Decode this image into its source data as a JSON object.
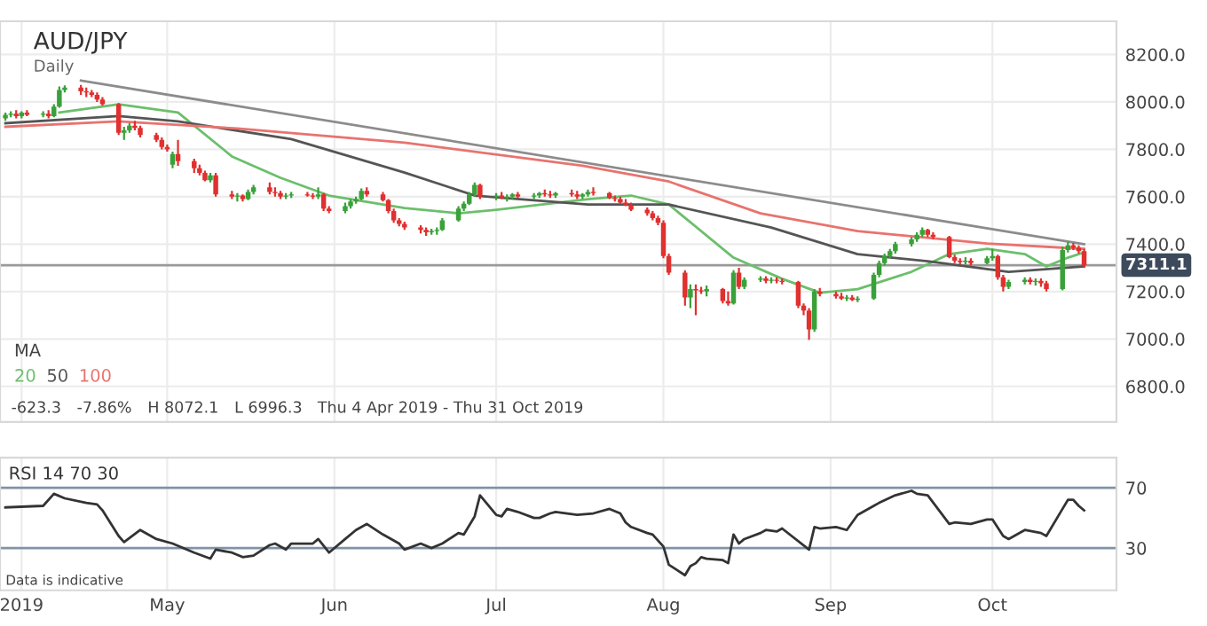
{
  "chart_data": [
    {
      "type": "candlestick",
      "title": "AUD/JPY",
      "subtitle": "Daily",
      "legend_title": "MA",
      "legend": "bottom left",
      "grid": true,
      "tick_labels": "y",
      "annotations": [
        "-623.3",
        "-7.86%",
        "H 8072.1",
        "L 6996.3",
        "Thu 4 Apr 2019 - Thu 31 Oct 2019"
      ],
      "xlim": [
        "2019-03-31",
        "2019-10-24"
      ],
      "xticks": [
        {
          "value": "2019-04-04",
          "label": null
        },
        {
          "value": "2019-05-01",
          "label": null
        },
        {
          "value": "2019-06-01",
          "label": null
        },
        {
          "value": "2019-07-01",
          "label": null
        },
        {
          "value": "2019-08-01",
          "label": null
        },
        {
          "value": "2019-09-01",
          "label": null
        },
        {
          "value": "2019-10-01",
          "label": null
        }
      ],
      "ylim": [
        6650,
        8340
      ],
      "yticks": [
        {
          "value": 6800,
          "label": "6800.0"
        },
        {
          "value": 7000,
          "label": "7000.0"
        },
        {
          "value": 7200,
          "label": "7200.0"
        },
        {
          "value": 7400,
          "label": "7400.0"
        },
        {
          "value": 7600,
          "label": "7600.0"
        },
        {
          "value": 7800,
          "label": "7800.0"
        },
        {
          "value": 8000,
          "label": "8000.0"
        },
        {
          "value": 8200,
          "label": "8200.0"
        }
      ],
      "ref_lines": [
        {
          "axis": "y",
          "value": 7311.1,
          "label": "7311.1",
          "color": "#9a9a9a"
        }
      ],
      "x": [
        "2019-04-01",
        "2019-04-02",
        "2019-04-03",
        "2019-04-04",
        "2019-04-05",
        "2019-04-08",
        "2019-04-09",
        "2019-04-10",
        "2019-04-11",
        "2019-04-12",
        "2019-04-15",
        "2019-04-16",
        "2019-04-17",
        "2019-04-18",
        "2019-04-19",
        "2019-04-22",
        "2019-04-23",
        "2019-04-24",
        "2019-04-25",
        "2019-04-26",
        "2019-04-29",
        "2019-04-30",
        "2019-05-01",
        "2019-05-02",
        "2019-05-03",
        "2019-05-06",
        "2019-05-07",
        "2019-05-08",
        "2019-05-09",
        "2019-05-10",
        "2019-05-13",
        "2019-05-14",
        "2019-05-15",
        "2019-05-16",
        "2019-05-17",
        "2019-05-20",
        "2019-05-21",
        "2019-05-22",
        "2019-05-23",
        "2019-05-24",
        "2019-05-27",
        "2019-05-28",
        "2019-05-29",
        "2019-05-30",
        "2019-05-31",
        "2019-06-03",
        "2019-06-04",
        "2019-06-05",
        "2019-06-06",
        "2019-06-07",
        "2019-06-10",
        "2019-06-11",
        "2019-06-12",
        "2019-06-13",
        "2019-06-14",
        "2019-06-17",
        "2019-06-18",
        "2019-06-19",
        "2019-06-20",
        "2019-06-21",
        "2019-06-24",
        "2019-06-25",
        "2019-06-26",
        "2019-06-27",
        "2019-06-28",
        "2019-07-01",
        "2019-07-02",
        "2019-07-03",
        "2019-07-04",
        "2019-07-05",
        "2019-07-08",
        "2019-07-09",
        "2019-07-10",
        "2019-07-11",
        "2019-07-12",
        "2019-07-15",
        "2019-07-16",
        "2019-07-17",
        "2019-07-18",
        "2019-07-19",
        "2019-07-22",
        "2019-07-23",
        "2019-07-24",
        "2019-07-25",
        "2019-07-26",
        "2019-07-29",
        "2019-07-30",
        "2019-07-31",
        "2019-08-01",
        "2019-08-02",
        "2019-08-05",
        "2019-08-06",
        "2019-08-07",
        "2019-08-08",
        "2019-08-09",
        "2019-08-12",
        "2019-08-13",
        "2019-08-14",
        "2019-08-15",
        "2019-08-16",
        "2019-08-19",
        "2019-08-20",
        "2019-08-21",
        "2019-08-22",
        "2019-08-23",
        "2019-08-26",
        "2019-08-27",
        "2019-08-28",
        "2019-08-29",
        "2019-08-30",
        "2019-09-02",
        "2019-09-03",
        "2019-09-04",
        "2019-09-05",
        "2019-09-06",
        "2019-09-09",
        "2019-09-10",
        "2019-09-11",
        "2019-09-12",
        "2019-09-13",
        "2019-09-16",
        "2019-09-17",
        "2019-09-18",
        "2019-09-19",
        "2019-09-20",
        "2019-09-23",
        "2019-09-24",
        "2019-09-25",
        "2019-09-26",
        "2019-09-27",
        "2019-09-30",
        "2019-10-01",
        "2019-10-02",
        "2019-10-03",
        "2019-10-04",
        "2019-10-07",
        "2019-10-08",
        "2019-10-09",
        "2019-10-10",
        "2019-10-11",
        "2019-10-14",
        "2019-10-15",
        "2019-10-16",
        "2019-10-17",
        "2019-10-18"
      ],
      "ohlc": [
        [
          7930,
          7955,
          7920,
          7945
        ],
        [
          7945,
          7960,
          7935,
          7950
        ],
        [
          7950,
          7965,
          7930,
          7940
        ],
        [
          7940,
          7960,
          7930,
          7955
        ],
        [
          7955,
          7965,
          7940,
          7945
        ],
        [
          7945,
          7960,
          7935,
          7950
        ],
        [
          7950,
          7965,
          7930,
          7940
        ],
        [
          7940,
          7990,
          7935,
          7980
        ],
        [
          7980,
          8065,
          7975,
          8050
        ],
        [
          8050,
          8070,
          8040,
          8060
        ],
        [
          8060,
          8072.1,
          8030,
          8045
        ],
        [
          8045,
          8060,
          8020,
          8040
        ],
        [
          8040,
          8050,
          8020,
          8030
        ],
        [
          8030,
          8040,
          8000,
          8010
        ],
        [
          8010,
          8020,
          7985,
          7990
        ],
        [
          7990,
          7995,
          7860,
          7870
        ],
        [
          7870,
          7895,
          7840,
          7880
        ],
        [
          7880,
          7910,
          7870,
          7900
        ],
        [
          7900,
          7920,
          7880,
          7890
        ],
        [
          7890,
          7900,
          7850,
          7860
        ],
        [
          7860,
          7870,
          7830,
          7840
        ],
        [
          7840,
          7850,
          7800,
          7810
        ],
        [
          7810,
          7820,
          7790,
          7800
        ],
        [
          7735,
          7790,
          7720,
          7780
        ],
        [
          7780,
          7840,
          7730,
          7750
        ],
        [
          7750,
          7760,
          7700,
          7720
        ],
        [
          7720,
          7735,
          7690,
          7700
        ],
        [
          7700,
          7710,
          7665,
          7670
        ],
        [
          7670,
          7700,
          7660,
          7690
        ],
        [
          7690,
          7700,
          7600,
          7610
        ],
        [
          7610,
          7625,
          7590,
          7600
        ],
        [
          7600,
          7615,
          7580,
          7605
        ],
        [
          7605,
          7610,
          7580,
          7590
        ],
        [
          7590,
          7630,
          7585,
          7620
        ],
        [
          7620,
          7650,
          7610,
          7640
        ],
        [
          7640,
          7660,
          7610,
          7620
        ],
        [
          7620,
          7640,
          7600,
          7615
        ],
        [
          7615,
          7625,
          7590,
          7600
        ],
        [
          7600,
          7615,
          7590,
          7605
        ],
        [
          7605,
          7620,
          7595,
          7610
        ],
        [
          7610,
          7620,
          7600,
          7605
        ],
        [
          7605,
          7615,
          7590,
          7600
        ],
        [
          7600,
          7640,
          7590,
          7610
        ],
        [
          7610,
          7615,
          7540,
          7550
        ],
        [
          7550,
          7560,
          7530,
          7540
        ],
        [
          7540,
          7575,
          7530,
          7560
        ],
        [
          7560,
          7590,
          7550,
          7580
        ],
        [
          7580,
          7600,
          7570,
          7590
        ],
        [
          7590,
          7635,
          7585,
          7625
        ],
        [
          7625,
          7640,
          7600,
          7610
        ],
        [
          7610,
          7620,
          7580,
          7585
        ],
        [
          7585,
          7590,
          7530,
          7540
        ],
        [
          7540,
          7550,
          7490,
          7500
        ],
        [
          7500,
          7510,
          7475,
          7485
        ],
        [
          7485,
          7495,
          7460,
          7470
        ],
        [
          7470,
          7480,
          7445,
          7460
        ],
        [
          7460,
          7470,
          7435,
          7450
        ],
        [
          7450,
          7465,
          7440,
          7455
        ],
        [
          7455,
          7470,
          7440,
          7460
        ],
        [
          7460,
          7510,
          7455,
          7500
        ],
        [
          7500,
          7560,
          7495,
          7550
        ],
        [
          7550,
          7580,
          7540,
          7570
        ],
        [
          7570,
          7620,
          7565,
          7610
        ],
        [
          7610,
          7660,
          7600,
          7650
        ],
        [
          7650,
          7655,
          7590,
          7600
        ],
        [
          7600,
          7615,
          7585,
          7605
        ],
        [
          7605,
          7620,
          7590,
          7595
        ],
        [
          7595,
          7610,
          7580,
          7600
        ],
        [
          7600,
          7615,
          7590,
          7610
        ],
        [
          7610,
          7620,
          7595,
          7600
        ],
        [
          7600,
          7615,
          7590,
          7605
        ],
        [
          7605,
          7620,
          7595,
          7615
        ],
        [
          7615,
          7630,
          7600,
          7610
        ],
        [
          7610,
          7625,
          7595,
          7605
        ],
        [
          7605,
          7620,
          7595,
          7615
        ],
        [
          7615,
          7630,
          7600,
          7610
        ],
        [
          7610,
          7625,
          7590,
          7600
        ],
        [
          7600,
          7615,
          7590,
          7610
        ],
        [
          7610,
          7630,
          7600,
          7620
        ],
        [
          7620,
          7640,
          7605,
          7615
        ],
        [
          7615,
          7620,
          7590,
          7595
        ],
        [
          7595,
          7605,
          7580,
          7590
        ],
        [
          7590,
          7600,
          7570,
          7575
        ],
        [
          7575,
          7590,
          7560,
          7565
        ],
        [
          7565,
          7575,
          7540,
          7545
        ],
        [
          7545,
          7555,
          7520,
          7530
        ],
        [
          7530,
          7540,
          7500,
          7510
        ],
        [
          7510,
          7520,
          7480,
          7490
        ],
        [
          7490,
          7500,
          7340,
          7350
        ],
        [
          7350,
          7360,
          7270,
          7280
        ],
        [
          7280,
          7290,
          7140,
          7175
        ],
        [
          7175,
          7230,
          7130,
          7210
        ],
        [
          7210,
          7230,
          7100,
          7205
        ],
        [
          7205,
          7220,
          7190,
          7200
        ],
        [
          7200,
          7225,
          7180,
          7210
        ],
        [
          7210,
          7215,
          7150,
          7160
        ],
        [
          7160,
          7200,
          7140,
          7150
        ],
        [
          7150,
          7290,
          7145,
          7280
        ],
        [
          7280,
          7300,
          7210,
          7220
        ],
        [
          7220,
          7260,
          7210,
          7250
        ],
        [
          7250,
          7265,
          7240,
          7255
        ],
        [
          7255,
          7265,
          7235,
          7245
        ],
        [
          7245,
          7260,
          7235,
          7250
        ],
        [
          7250,
          7260,
          7235,
          7245
        ],
        [
          7245,
          7255,
          7230,
          7240
        ],
        [
          7240,
          7245,
          7130,
          7140
        ],
        [
          7140,
          7150,
          7100,
          7120
        ],
        [
          7120,
          7130,
          6996.3,
          7040
        ],
        [
          7040,
          7210,
          7030,
          7200
        ],
        [
          7200,
          7215,
          7180,
          7190
        ],
        [
          7190,
          7200,
          7170,
          7180
        ],
        [
          7180,
          7195,
          7165,
          7170
        ],
        [
          7170,
          7185,
          7160,
          7175
        ],
        [
          7175,
          7185,
          7160,
          7165
        ],
        [
          7165,
          7180,
          7155,
          7170
        ],
        [
          7170,
          7280,
          7165,
          7270
        ],
        [
          7270,
          7330,
          7260,
          7320
        ],
        [
          7320,
          7360,
          7310,
          7350
        ],
        [
          7350,
          7380,
          7340,
          7370
        ],
        [
          7370,
          7410,
          7360,
          7400
        ],
        [
          7400,
          7430,
          7390,
          7420
        ],
        [
          7420,
          7450,
          7410,
          7440
        ],
        [
          7440,
          7470,
          7430,
          7460
        ],
        [
          7460,
          7465,
          7430,
          7440
        ],
        [
          7440,
          7450,
          7420,
          7430
        ],
        [
          7430,
          7435,
          7340,
          7345
        ],
        [
          7345,
          7355,
          7320,
          7330
        ],
        [
          7330,
          7340,
          7315,
          7325
        ],
        [
          7325,
          7345,
          7315,
          7330
        ],
        [
          7330,
          7340,
          7310,
          7320
        ],
        [
          7320,
          7350,
          7315,
          7340
        ],
        [
          7340,
          7380,
          7330,
          7350
        ],
        [
          7350,
          7355,
          7250,
          7260
        ],
        [
          7260,
          7270,
          7200,
          7220
        ],
        [
          7220,
          7250,
          7210,
          7240
        ],
        [
          7240,
          7260,
          7230,
          7250
        ],
        [
          7250,
          7260,
          7230,
          7240
        ],
        [
          7240,
          7255,
          7225,
          7245
        ],
        [
          7245,
          7255,
          7220,
          7235
        ],
        [
          7235,
          7245,
          7200,
          7210
        ],
        [
          7210,
          7390,
          7205,
          7375
        ],
        [
          7375,
          7410,
          7365,
          7395
        ],
        [
          7395,
          7405,
          7375,
          7385
        ],
        [
          7385,
          7395,
          7360,
          7370
        ],
        [
          7370,
          7380,
          7300,
          7311.1
        ]
      ],
      "series": [
        {
          "type": "line",
          "name": "20",
          "color": "#6cbf6c",
          "x": [
            "2019-04-11",
            "2019-04-22",
            "2019-05-03",
            "2019-05-13",
            "2019-05-22",
            "2019-05-31",
            "2019-06-14",
            "2019-06-24",
            "2019-07-01",
            "2019-07-18",
            "2019-07-26",
            "2019-08-02",
            "2019-08-14",
            "2019-08-23",
            "2019-08-30",
            "2019-09-06",
            "2019-09-16",
            "2019-09-23",
            "2019-09-30",
            "2019-10-07",
            "2019-10-11",
            "2019-10-15",
            "2019-10-18"
          ],
          "values": [
            7955,
            7990,
            7955,
            7770,
            7680,
            7605,
            7552,
            7530,
            7545,
            7590,
            7605,
            7567,
            7343,
            7254,
            7195,
            7210,
            7283,
            7358,
            7380,
            7358,
            7306,
            7343,
            7365
          ]
        },
        {
          "type": "line",
          "name": "50",
          "color": "#555555",
          "x": [
            "2019-04-01",
            "2019-04-22",
            "2019-05-03",
            "2019-05-24",
            "2019-06-14",
            "2019-06-27",
            "2019-07-18",
            "2019-08-02",
            "2019-08-21",
            "2019-09-06",
            "2019-09-19",
            "2019-10-04",
            "2019-10-18"
          ],
          "values": [
            7910,
            7940,
            7918,
            7843,
            7702,
            7605,
            7567,
            7567,
            7470,
            7358,
            7328,
            7283,
            7306
          ]
        },
        {
          "type": "line",
          "name": "100",
          "color": "#e8736f",
          "x": [
            "2019-04-01",
            "2019-04-22",
            "2019-05-14",
            "2019-06-14",
            "2019-07-17",
            "2019-08-02",
            "2019-08-19",
            "2019-09-06",
            "2019-09-30",
            "2019-10-18"
          ],
          "values": [
            7895,
            7918,
            7888,
            7828,
            7731,
            7664,
            7530,
            7455,
            7403,
            7380
          ]
        },
        {
          "type": "line",
          "color": "#8c8c8c",
          "x": [
            "2019-04-15",
            "2019-10-18"
          ],
          "values": [
            8090,
            7400
          ]
        }
      ]
    },
    {
      "type": "line",
      "legend": "top left",
      "grid": "x",
      "annotations": [
        "Data is indicative"
      ],
      "xlim": [
        "2019-03-31",
        "2019-10-24"
      ],
      "xticks": [
        {
          "value": "2019-04-04",
          "label": "2019"
        },
        {
          "value": "2019-05-01",
          "label": "May"
        },
        {
          "value": "2019-06-01",
          "label": "Jun"
        },
        {
          "value": "2019-07-01",
          "label": "Jul"
        },
        {
          "value": "2019-08-01",
          "label": "Aug"
        },
        {
          "value": "2019-09-01",
          "label": "Sep"
        },
        {
          "value": "2019-10-01",
          "label": "Oct"
        }
      ],
      "ylim": [
        2,
        90
      ],
      "yticks": [
        30,
        70
      ],
      "ref_lines": [
        {
          "axis": "y",
          "value": 70,
          "color": "#7f93a8"
        },
        {
          "axis": "y",
          "value": 30,
          "color": "#7f93a8"
        }
      ],
      "series": [
        {
          "name": "RSI 14 70 30",
          "color": "#333333",
          "x": [
            "2019-04-01",
            "2019-04-08",
            "2019-04-10",
            "2019-04-12",
            "2019-04-16",
            "2019-04-18",
            "2019-04-19",
            "2019-04-22",
            "2019-04-23",
            "2019-04-26",
            "2019-04-29",
            "2019-05-02",
            "2019-05-06",
            "2019-05-09",
            "2019-05-10",
            "2019-05-13",
            "2019-05-15",
            "2019-05-17",
            "2019-05-20",
            "2019-05-21",
            "2019-05-23",
            "2019-05-24",
            "2019-05-28",
            "2019-05-29",
            "2019-05-31",
            "2019-06-03",
            "2019-06-05",
            "2019-06-07",
            "2019-06-10",
            "2019-06-13",
            "2019-06-14",
            "2019-06-17",
            "2019-06-19",
            "2019-06-21",
            "2019-06-24",
            "2019-06-25",
            "2019-06-27",
            "2019-06-28",
            "2019-07-01",
            "2019-07-02",
            "2019-07-03",
            "2019-07-05",
            "2019-07-08",
            "2019-07-09",
            "2019-07-11",
            "2019-07-12",
            "2019-07-16",
            "2019-07-19",
            "2019-07-22",
            "2019-07-24",
            "2019-07-25",
            "2019-07-26",
            "2019-07-29",
            "2019-07-30",
            "2019-08-01",
            "2019-08-02",
            "2019-08-05",
            "2019-08-06",
            "2019-08-07",
            "2019-08-08",
            "2019-08-09",
            "2019-08-12",
            "2019-08-13",
            "2019-08-14",
            "2019-08-15",
            "2019-08-16",
            "2019-08-19",
            "2019-08-20",
            "2019-08-22",
            "2019-08-23",
            "2019-08-28",
            "2019-08-29",
            "2019-08-30",
            "2019-09-02",
            "2019-09-04",
            "2019-09-06",
            "2019-09-09",
            "2019-09-10",
            "2019-09-13",
            "2019-09-16",
            "2019-09-17",
            "2019-09-19",
            "2019-09-23",
            "2019-09-24",
            "2019-09-27",
            "2019-09-30",
            "2019-10-01",
            "2019-10-03",
            "2019-10-04",
            "2019-10-07",
            "2019-10-10",
            "2019-10-11",
            "2019-10-14",
            "2019-10-15",
            "2019-10-16",
            "2019-10-17",
            "2019-10-18"
          ],
          "values": [
            57,
            58,
            66,
            63,
            60,
            59,
            55,
            38,
            34,
            42,
            36,
            33,
            27,
            23,
            29,
            27,
            24,
            25,
            32,
            33,
            29,
            33,
            33,
            36,
            27,
            36,
            42,
            46,
            39,
            33,
            29,
            33,
            30,
            33,
            40,
            39,
            51,
            65,
            52,
            51,
            56,
            54,
            50,
            50,
            53,
            54,
            52,
            53,
            56,
            53,
            47,
            44,
            40,
            39,
            31,
            19,
            12,
            18,
            20,
            24,
            23,
            22,
            20,
            39,
            33,
            36,
            40,
            42,
            41,
            43,
            29,
            44,
            43,
            44,
            42,
            52,
            58,
            60,
            65,
            68,
            66,
            65,
            46,
            47,
            46,
            49,
            49,
            38,
            36,
            42,
            40,
            38,
            56,
            62,
            62,
            58,
            55
          ]
        }
      ]
    }
  ]
}
